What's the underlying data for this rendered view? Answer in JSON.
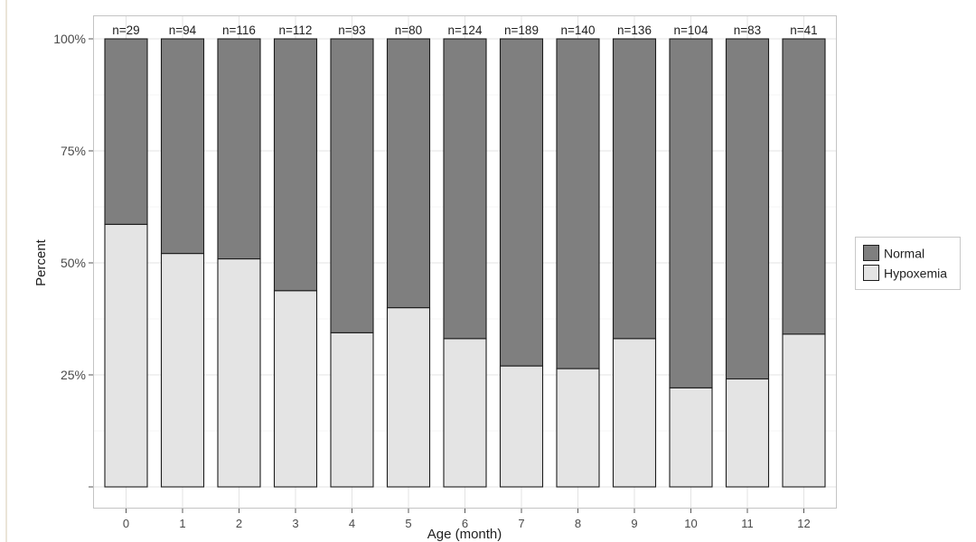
{
  "chart_data": {
    "type": "bar",
    "stacked": true,
    "categories": [
      "0",
      "1",
      "2",
      "3",
      "4",
      "5",
      "6",
      "7",
      "8",
      "9",
      "10",
      "11",
      "12"
    ],
    "series": [
      {
        "name": "Normal",
        "color": "#7f7f7f",
        "values": [
          41.4,
          47.9,
          49.1,
          56.2,
          65.6,
          60.0,
          66.9,
          73.0,
          73.6,
          66.9,
          77.9,
          75.9,
          65.9
        ]
      },
      {
        "name": "Hypoxemia",
        "color": "#e4e4e4",
        "values": [
          58.6,
          52.1,
          50.9,
          43.8,
          34.4,
          40.0,
          33.1,
          27.0,
          26.4,
          33.1,
          22.1,
          24.1,
          34.1
        ]
      }
    ],
    "n_labels": [
      "n=29",
      "n=94",
      "n=116",
      "n=112",
      "n=93",
      "n=80",
      "n=124",
      "n=189",
      "n=140",
      "n=136",
      "n=104",
      "n=83",
      "n=41"
    ],
    "xlabel": "Age (month)",
    "ylabel": "Percent",
    "ylim": [
      0,
      100
    ],
    "yticks": [
      0,
      25,
      50,
      75,
      100
    ],
    "ytick_labels": [
      "",
      "25%",
      "50%",
      "75%",
      "100%"
    ],
    "grid": true,
    "legend": {
      "position": "right"
    }
  }
}
